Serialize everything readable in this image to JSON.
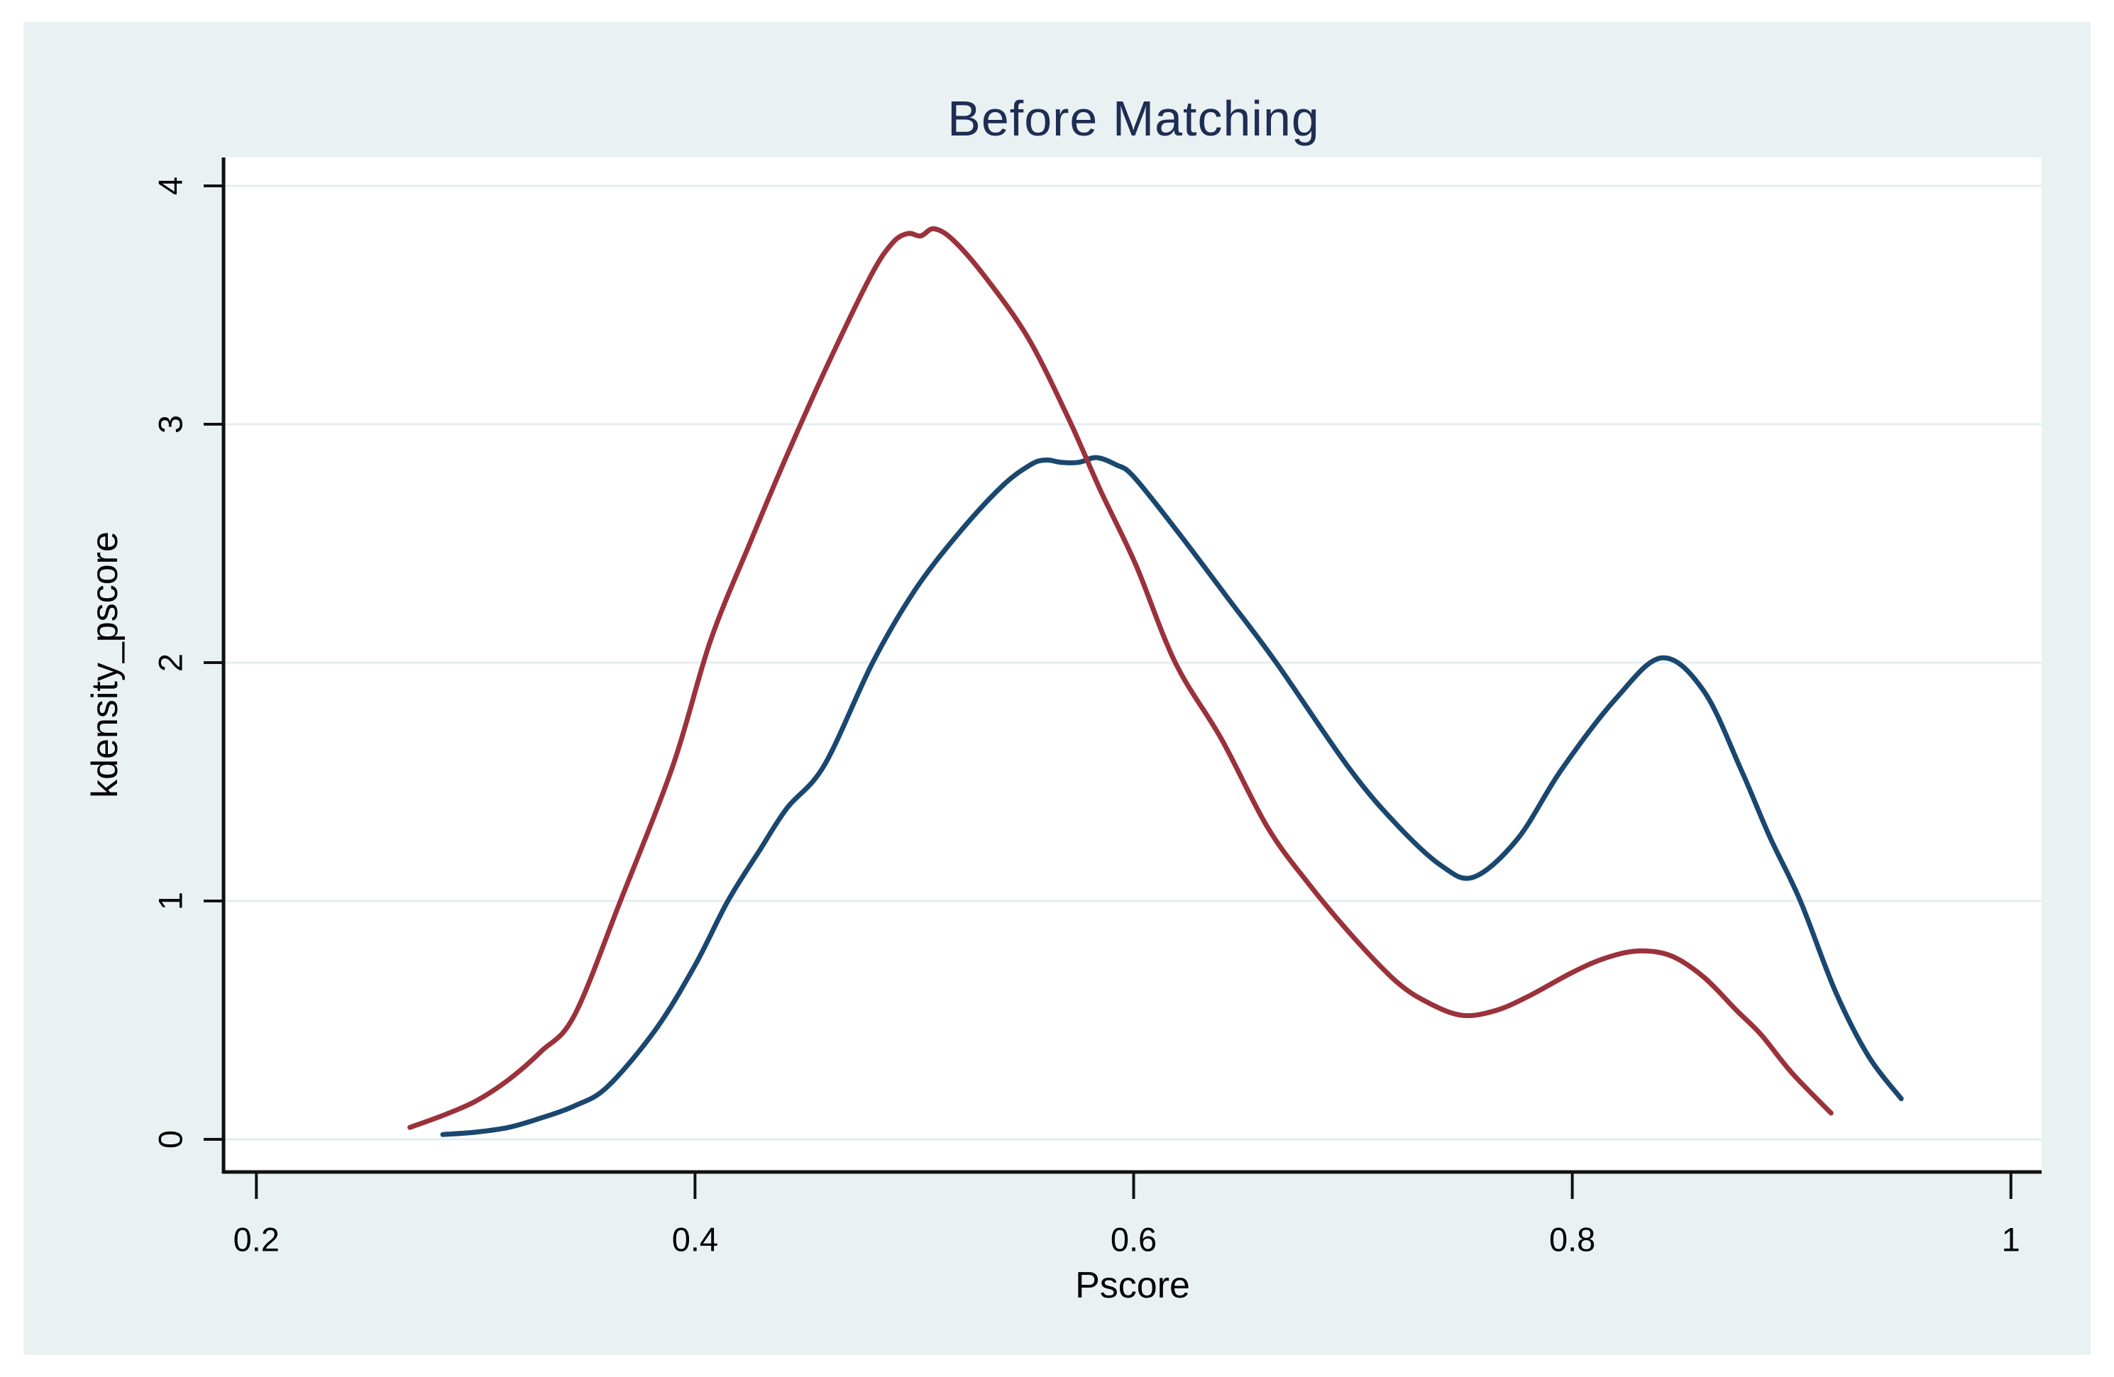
{
  "chart_data": {
    "type": "line",
    "title": "Before Matching",
    "xlabel": "Pscore",
    "ylabel": "kdensity_pscore",
    "legend": "none",
    "grid": "horizontal",
    "colors": {
      "canvas_background": "#eaf1f3",
      "plot_background": "#ffffff",
      "gridline": "#e4eef1",
      "axis": "#111111",
      "title": "#1e2d53",
      "tick_label": "#000000"
    },
    "x_axis": {
      "label": "Pscore",
      "min": 0.186,
      "max": 1.014,
      "ticks": [
        0.2,
        0.4,
        0.6,
        0.8,
        1
      ],
      "tick_labels": [
        "0.2",
        "0.4",
        "0.6",
        "0.8",
        "1"
      ]
    },
    "y_axis": {
      "label": "kdensity_pscore",
      "min": -0.137,
      "max": 4.119,
      "ticks": [
        0,
        1,
        2,
        3,
        4
      ],
      "tick_labels": [
        "0",
        "1",
        "2",
        "3",
        "4"
      ]
    },
    "series": [
      {
        "name": "navy_curve",
        "color": "#1a476f",
        "line_width": 7,
        "x": [
          0.285,
          0.3,
          0.315,
          0.33,
          0.345,
          0.36,
          0.382,
          0.4,
          0.415,
          0.43,
          0.442,
          0.459,
          0.481,
          0.5,
          0.52,
          0.54,
          0.553,
          0.56,
          0.567,
          0.575,
          0.583,
          0.592,
          0.6,
          0.62,
          0.643,
          0.665,
          0.698,
          0.72,
          0.74,
          0.755,
          0.775,
          0.795,
          0.82,
          0.841,
          0.86,
          0.877,
          0.89,
          0.904,
          0.92,
          0.935,
          0.95
        ],
        "y": [
          0.02,
          0.03,
          0.05,
          0.09,
          0.14,
          0.22,
          0.46,
          0.73,
          1.0,
          1.22,
          1.39,
          1.57,
          2.0,
          2.3,
          2.54,
          2.74,
          2.83,
          2.85,
          2.84,
          2.84,
          2.86,
          2.83,
          2.78,
          2.55,
          2.27,
          2.0,
          1.56,
          1.32,
          1.15,
          1.1,
          1.26,
          1.55,
          1.85,
          2.02,
          1.88,
          1.55,
          1.27,
          1.0,
          0.62,
          0.35,
          0.17
        ]
      },
      {
        "name": "maroon_curve",
        "color": "#9b323b",
        "line_width": 7,
        "x": [
          0.27,
          0.285,
          0.3,
          0.315,
          0.33,
          0.345,
          0.366,
          0.39,
          0.407,
          0.425,
          0.441,
          0.46,
          0.48,
          0.49,
          0.497,
          0.503,
          0.509,
          0.518,
          0.533,
          0.552,
          0.57,
          0.585,
          0.601,
          0.619,
          0.64,
          0.661,
          0.68,
          0.7,
          0.72,
          0.735,
          0.75,
          0.765,
          0.78,
          0.8,
          0.815,
          0.83,
          0.845,
          0.86,
          0.875,
          0.886,
          0.9,
          0.918
        ],
        "y": [
          0.05,
          0.1,
          0.16,
          0.25,
          0.37,
          0.52,
          1.0,
          1.57,
          2.09,
          2.5,
          2.85,
          3.24,
          3.62,
          3.76,
          3.8,
          3.79,
          3.82,
          3.77,
          3.61,
          3.36,
          3.03,
          2.72,
          2.41,
          2.0,
          1.68,
          1.31,
          1.07,
          0.85,
          0.66,
          0.57,
          0.52,
          0.54,
          0.6,
          0.7,
          0.76,
          0.79,
          0.77,
          0.68,
          0.54,
          0.44,
          0.28,
          0.11
        ]
      }
    ]
  }
}
